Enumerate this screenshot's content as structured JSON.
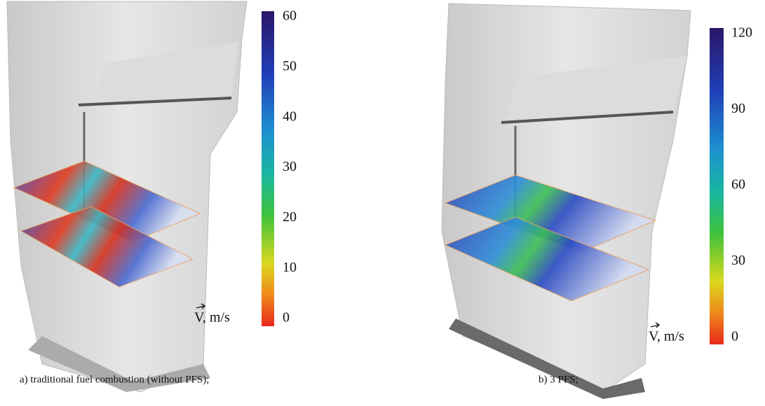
{
  "panels": [
    {
      "colorbar": {
        "ticks": [
          60,
          50,
          40,
          30,
          20,
          10,
          0
        ]
      },
      "unit_label": "V, m/s",
      "caption": "a) traditional fuel combustion (without PFS);"
    },
    {
      "colorbar": {
        "ticks": [
          120,
          90,
          60,
          30,
          0
        ]
      },
      "unit_label": "V, m/s",
      "caption": "b) 3 PFS;"
    }
  ]
}
